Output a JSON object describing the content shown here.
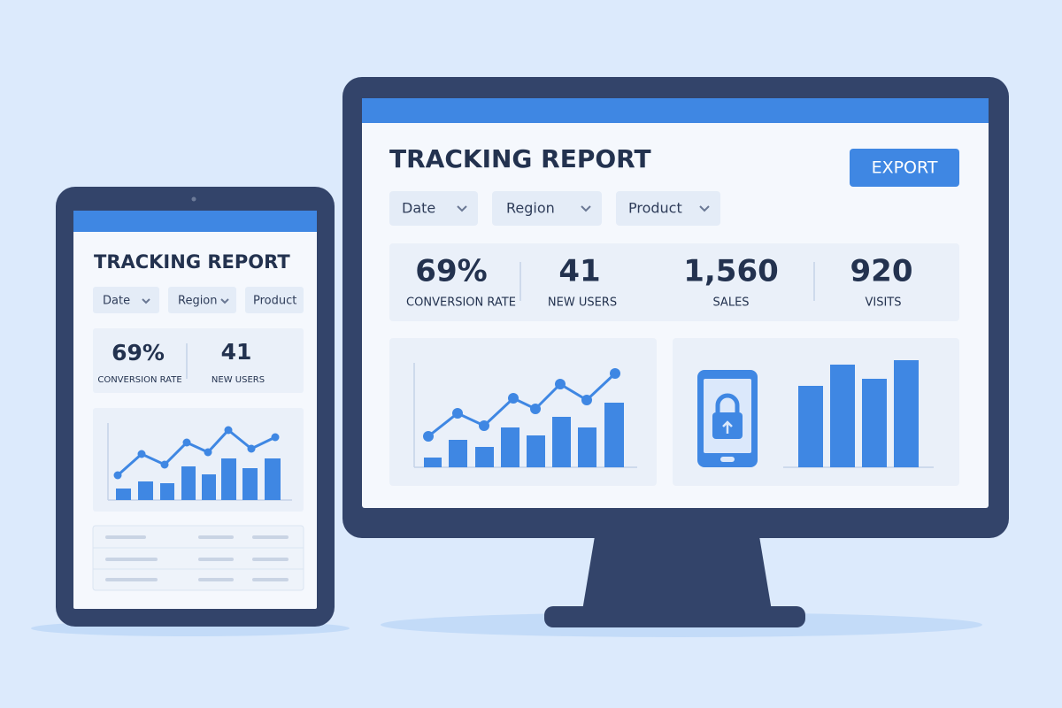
{
  "desktop": {
    "title": "TRACKING REPORT",
    "button": "EXPORT",
    "filters": [
      "Date",
      "Region",
      "Product"
    ],
    "kpis": [
      {
        "value": "69%",
        "label": "CONVERSION RATE"
      },
      {
        "value": "41",
        "label": "NEW  USERS"
      },
      {
        "value": "1,560",
        "label": "SALES"
      },
      {
        "value": "920",
        "label": "VISITS"
      }
    ]
  },
  "tablet": {
    "title": "TRACKING REPORT",
    "filters": [
      "Date",
      "Region",
      "Product"
    ],
    "kpis": [
      {
        "value": "69%",
        "label": "CONVERSION RATE"
      },
      {
        "value": "41",
        "label": "NEW  USERS"
      }
    ]
  }
}
